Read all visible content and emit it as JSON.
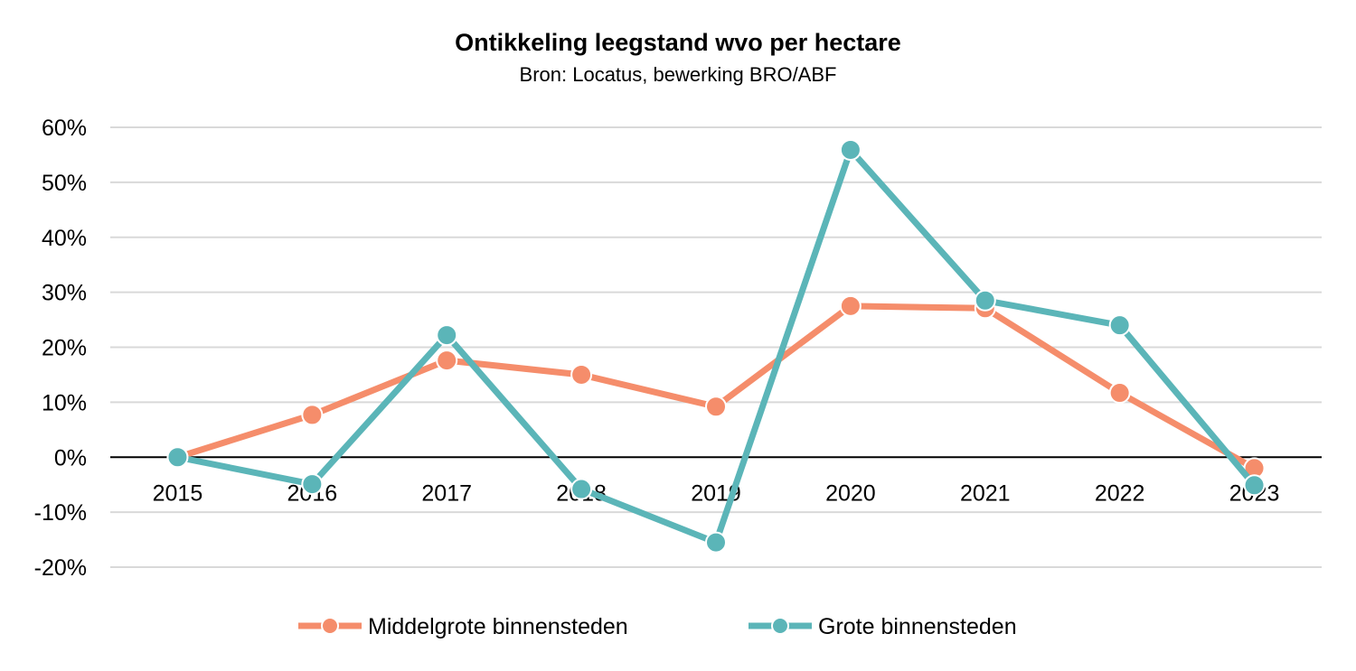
{
  "chart_data": {
    "type": "line",
    "title": "Ontikkeling leegstand wvo per hectare",
    "subtitle": "Bron: Locatus, bewerking BRO/ABF",
    "categories": [
      "2015",
      "2016",
      "2017",
      "2018",
      "2019",
      "2020",
      "2021",
      "2022",
      "2023"
    ],
    "ylim": [
      -20,
      60
    ],
    "yticks": [
      60,
      50,
      40,
      30,
      20,
      10,
      0,
      -10,
      -20
    ],
    "ytick_labels": [
      "60%",
      "50%",
      "40%",
      "30%",
      "20%",
      "10%",
      "0%",
      "-10%",
      "-20%"
    ],
    "grid": true,
    "legend_position": "bottom",
    "series": [
      {
        "name": "Middelgrote binnensteden",
        "color": "#F58D6B",
        "values": [
          0,
          7.7,
          17.6,
          15.0,
          9.2,
          27.5,
          27.1,
          11.7,
          -2.0
        ]
      },
      {
        "name": "Grote binnensteden",
        "color": "#5BB5B8",
        "values": [
          0,
          -4.9,
          22.2,
          -5.8,
          -15.5,
          55.9,
          28.5,
          24.0,
          -5.1
        ]
      }
    ]
  }
}
